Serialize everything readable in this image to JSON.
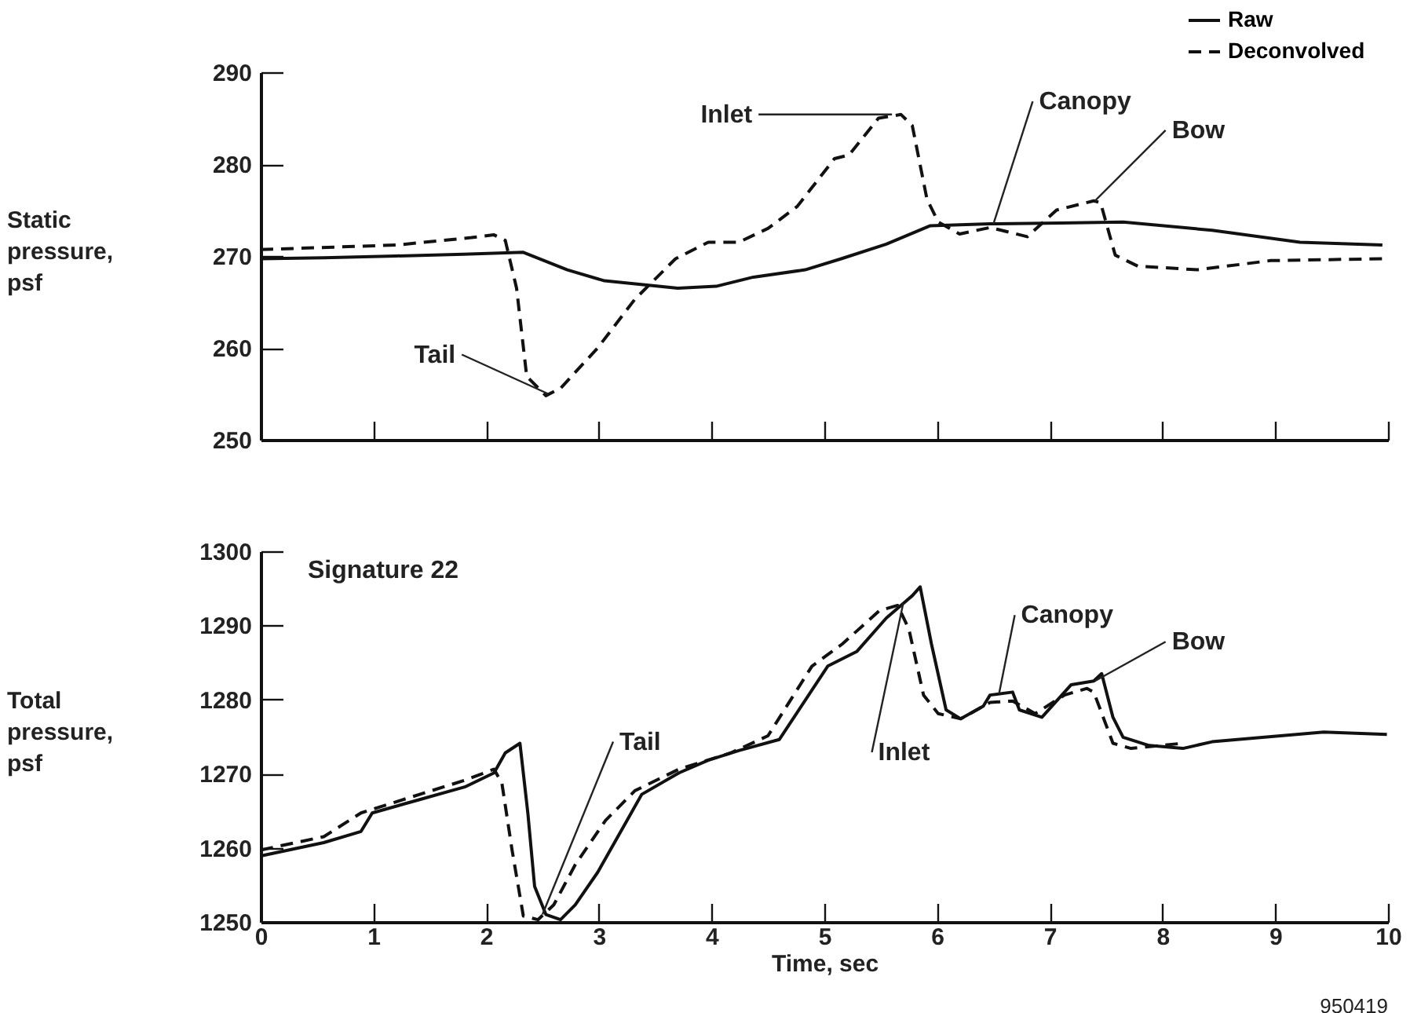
{
  "chart_data": [
    {
      "type": "line",
      "ylabel": "Static pressure, psf",
      "xlim": [
        0,
        10
      ],
      "xticks": [
        0,
        1,
        2,
        3,
        4,
        5,
        6,
        7,
        8,
        9,
        10
      ],
      "ylim": [
        250,
        290
      ],
      "yticks": [
        250,
        260,
        270,
        280,
        290
      ],
      "tick_labels": "y",
      "grid": false,
      "legend": "top right",
      "marker": "none",
      "series": [
        {
          "name": "Raw",
          "color": "#111111",
          "line_style": "solid",
          "x": [
            0,
            0.56,
            1.2,
            1.8,
            2.33,
            2.72,
            3.05,
            3.7,
            4.04,
            4.37,
            4.83,
            5.15,
            5.55,
            5.94,
            6.47,
            7.1,
            7.65,
            8.44,
            9.22,
            9.95
          ],
          "values": [
            269.7,
            269.8,
            270,
            270.2,
            270.4,
            268.5,
            267.3,
            266.5,
            266.7,
            267.7,
            268.5,
            269.7,
            271.3,
            273.3,
            273.5,
            273.6,
            273.7,
            272.8,
            271.5,
            271.2
          ]
        },
        {
          "name": "Deconvolved",
          "color": "#111111",
          "line_style": "dashed",
          "x": [
            0,
            1.21,
            1.87,
            2.07,
            2.17,
            2.27,
            2.36,
            2.53,
            2.66,
            2.99,
            3.32,
            3.68,
            3.97,
            4.24,
            4.5,
            4.76,
            5.09,
            5.22,
            5.48,
            5.68,
            5.78,
            5.91,
            6.01,
            6.2,
            6.47,
            6.8,
            7.06,
            7.39,
            7.45,
            7.58,
            7.78,
            8.31,
            8.96,
            9.95
          ],
          "values": [
            270.7,
            271.2,
            272,
            272.3,
            271.7,
            266.5,
            256.9,
            254.8,
            255.6,
            260,
            265.3,
            269.7,
            271.5,
            271.5,
            273,
            275.4,
            280.6,
            281,
            285,
            285.4,
            284.2,
            276.2,
            273.7,
            272.4,
            273.1,
            272.1,
            275,
            276,
            275.8,
            270.1,
            268.9,
            268.5,
            269.5,
            269.7
          ]
        }
      ],
      "annotations": [
        {
          "text": "Inlet",
          "x": 5.6,
          "y": 285.4
        },
        {
          "text": "Canopy",
          "x": 6.5,
          "y": 273.5
        },
        {
          "text": "Bow",
          "x": 7.4,
          "y": 276
        },
        {
          "text": "Tail",
          "x": 2.55,
          "y": 255
        }
      ]
    },
    {
      "type": "line",
      "xlabel": "Time, sec",
      "ylabel": "Total pressure, psf",
      "xlim": [
        0,
        10
      ],
      "xticks": [
        0,
        1,
        2,
        3,
        4,
        5,
        6,
        7,
        8,
        9,
        10
      ],
      "ylim": [
        1250,
        1300
      ],
      "yticks": [
        1250,
        1260,
        1270,
        1280,
        1290,
        1300
      ],
      "grid": false,
      "marker": "none",
      "series": [
        {
          "name": "Raw",
          "color": "#111111",
          "line_style": "solid",
          "x": [
            0,
            0.56,
            0.89,
            0.99,
            1.41,
            1.81,
            2.07,
            2.17,
            2.3,
            2.37,
            2.43,
            2.53,
            2.66,
            2.79,
            2.99,
            3.25,
            3.38,
            3.71,
            3.97,
            4.24,
            4.6,
            5.03,
            5.29,
            5.55,
            5.78,
            5.85,
            5.95,
            6.08,
            6.21,
            6.41,
            6.47,
            6.67,
            6.73,
            6.93,
            7.19,
            7.39,
            7.46,
            7.56,
            7.65,
            7.88,
            8.18,
            8.44,
            9.43,
            9.99
          ],
          "values": [
            1258.9,
            1260.7,
            1262.2,
            1264.7,
            1266.5,
            1268.2,
            1270.1,
            1272.8,
            1274.1,
            1264.7,
            1254.8,
            1251,
            1250.3,
            1252.3,
            1256.7,
            1263.7,
            1267.2,
            1270.1,
            1271.8,
            1273.1,
            1274.6,
            1284.5,
            1286.5,
            1291,
            1294,
            1295.2,
            1287.5,
            1278.6,
            1277.4,
            1279.1,
            1280.6,
            1281,
            1278.6,
            1277.6,
            1282,
            1282.5,
            1283.5,
            1277.6,
            1274.9,
            1273.8,
            1273.4,
            1274.3,
            1275.6,
            1275.3
          ]
        },
        {
          "name": "Deconvolved",
          "color": "#111111",
          "line_style": "dashed",
          "x": [
            0,
            0.56,
            0.89,
            1.41,
            1.81,
            2.07,
            2.14,
            2.23,
            2.33,
            2.46,
            2.6,
            2.79,
            3.06,
            3.32,
            3.71,
            4.17,
            4.5,
            4.89,
            5.16,
            5.49,
            5.65,
            5.75,
            5.88,
            6.01,
            6.21,
            6.47,
            6.67,
            6.87,
            7.13,
            7.33,
            7.39,
            7.56,
            7.72,
            8.18
          ],
          "values": [
            1259.7,
            1261.5,
            1264.7,
            1267.2,
            1269.1,
            1270.6,
            1268.7,
            1259.7,
            1250.8,
            1250.3,
            1252.3,
            1257.7,
            1263.7,
            1267.7,
            1270.6,
            1272.8,
            1275.1,
            1284.5,
            1287.5,
            1292,
            1292.7,
            1289.5,
            1280.6,
            1278.1,
            1277.4,
            1279.6,
            1279.8,
            1278.1,
            1280.6,
            1281.5,
            1281,
            1274.1,
            1273.4,
            1274.1
          ]
        }
      ],
      "annotations": [
        "Signature 22",
        {
          "text": "Tail",
          "x": 2.5,
          "y": 1251
        },
        {
          "text": "Inlet",
          "x": 5.7,
          "y": 1293
        },
        {
          "text": "Canopy",
          "x": 6.55,
          "y": 1280.8
        },
        {
          "text": "Bow",
          "x": 7.4,
          "y": 1282.5
        },
        "950419"
      ]
    }
  ]
}
